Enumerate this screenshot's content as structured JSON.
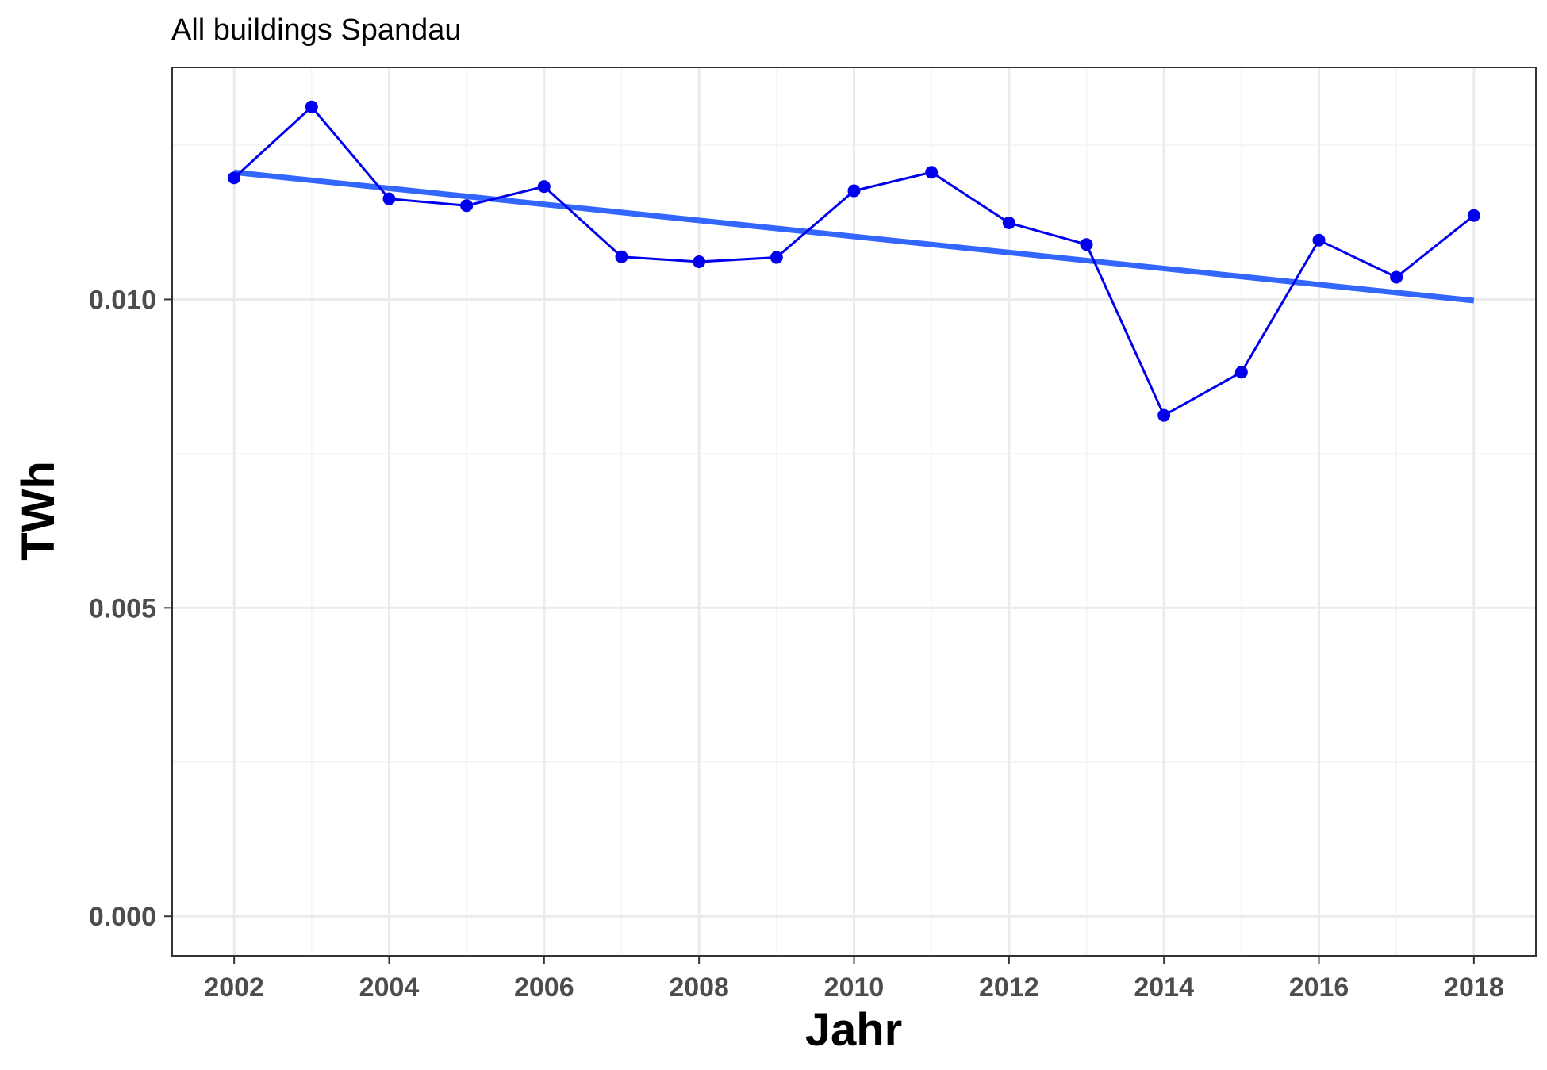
{
  "chart_data": {
    "type": "line",
    "title": "All buildings Spandau",
    "xlabel": "Jahr",
    "ylabel": "TWh",
    "x": [
      2002,
      2003,
      2004,
      2005,
      2006,
      2007,
      2008,
      2009,
      2010,
      2011,
      2012,
      2013,
      2014,
      2015,
      2016,
      2017,
      2018
    ],
    "series": [
      {
        "values": [
          0.01197,
          0.01312,
          0.01163,
          0.01152,
          0.01183,
          0.01069,
          0.01061,
          0.01068,
          0.01176,
          0.01206,
          0.01124,
          0.01089,
          0.00812,
          0.00882,
          0.01096,
          0.01036,
          0.01136
        ],
        "color": "#0000ee",
        "style": "line+points"
      }
    ],
    "trend": {
      "type": "linear",
      "values_at": {
        "2002": 0.01206,
        "2018": 0.00998
      },
      "color": "#3366ff"
    },
    "xticks": [
      "2002",
      "2004",
      "2006",
      "2008",
      "2010",
      "2012",
      "2014",
      "2016",
      "2018"
    ],
    "yticks": [
      "0.000",
      "0.005",
      "0.010"
    ],
    "xlim": [
      2001.2,
      2018.8
    ],
    "ylim": [
      -0.00064,
      0.01376
    ],
    "grid": true,
    "legend": "none",
    "colors": {
      "panel_border": "#333333",
      "grid_major": "#ebebeb",
      "grid_minor": "#f3f3f3"
    }
  }
}
